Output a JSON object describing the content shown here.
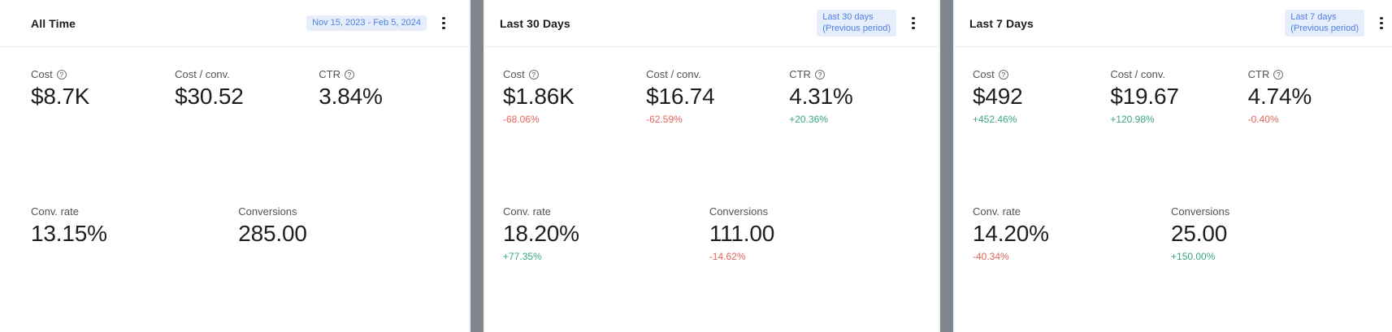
{
  "colors": {
    "positive": "#3aa487",
    "negative": "#e0655e",
    "badge_text": "#4e7fe0",
    "badge_bg": "#e7eefb",
    "divider": "#80868d"
  },
  "cards": [
    {
      "title": "All Time",
      "badge": {
        "line1": "Nov 15, 2023 - Feb 5, 2024",
        "line2": ""
      },
      "metrics": {
        "cost": {
          "label": "Cost",
          "value": "$8.7K",
          "delta": ""
        },
        "cost_per_conv": {
          "label": "Cost / conv.",
          "value": "$30.52",
          "delta": ""
        },
        "ctr": {
          "label": "CTR",
          "value": "3.84%",
          "delta": ""
        },
        "conv_rate": {
          "label": "Conv. rate",
          "value": "13.15%",
          "delta": ""
        },
        "conversions": {
          "label": "Conversions",
          "value": "285.00",
          "delta": ""
        }
      }
    },
    {
      "title": "Last 30 Days",
      "badge": {
        "line1": "Last 30 days",
        "line2": "(Previous period)"
      },
      "metrics": {
        "cost": {
          "label": "Cost",
          "value": "$1.86K",
          "delta": "-68.06%"
        },
        "cost_per_conv": {
          "label": "Cost / conv.",
          "value": "$16.74",
          "delta": "-62.59%"
        },
        "ctr": {
          "label": "CTR",
          "value": "4.31%",
          "delta": "+20.36%"
        },
        "conv_rate": {
          "label": "Conv. rate",
          "value": "18.20%",
          "delta": "+77.35%"
        },
        "conversions": {
          "label": "Conversions",
          "value": "111.00",
          "delta": "-14.62%"
        }
      }
    },
    {
      "title": "Last 7 Days",
      "badge": {
        "line1": "Last 7 days",
        "line2": "(Previous period)"
      },
      "metrics": {
        "cost": {
          "label": "Cost",
          "value": "$492",
          "delta": "+452.46%"
        },
        "cost_per_conv": {
          "label": "Cost / conv.",
          "value": "$19.67",
          "delta": "+120.98%"
        },
        "ctr": {
          "label": "CTR",
          "value": "4.74%",
          "delta": "-0.40%"
        },
        "conv_rate": {
          "label": "Conv. rate",
          "value": "14.20%",
          "delta": "-40.34%"
        },
        "conversions": {
          "label": "Conversions",
          "value": "25.00",
          "delta": "+150.00%"
        }
      }
    }
  ],
  "help_glyph": "?"
}
